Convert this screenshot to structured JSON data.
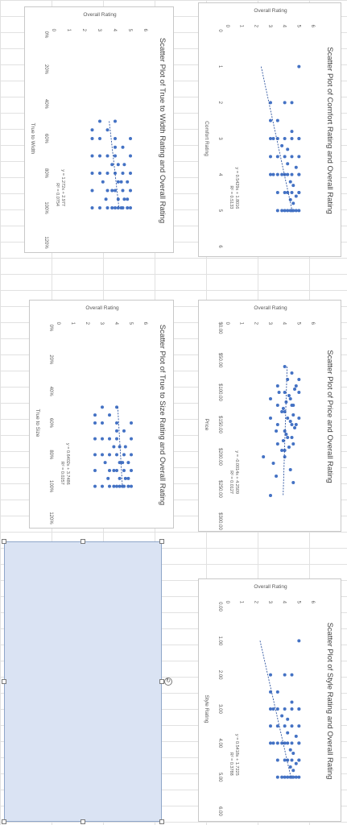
{
  "theme": {
    "marker_color": "#4472c4",
    "trend_color": "#2f55a0",
    "axis_text": "#595959",
    "title_text": "#404040"
  },
  "charts": [
    {
      "title": "Scatter Plot of Comfort Rating and Overall Rating",
      "xlabel": "Comfort Rating",
      "ylabel": "Overall Rating",
      "x_ticks": [
        "0",
        "1",
        "2",
        "3",
        "4",
        "5",
        "6"
      ],
      "y_ticks": [
        "0",
        "1",
        "2",
        "3",
        "4",
        "5",
        "6"
      ],
      "equation": "y = 0.5429x + 1.8016",
      "r2": "R² = 0.5133"
    },
    {
      "title": "Scatter Plot of True to Width Rating and Overall Rating",
      "xlabel": "True to Width",
      "ylabel": "Overall Rating",
      "x_ticks": [
        "0%",
        "20%",
        "40%",
        "60%",
        "80%",
        "100%",
        "120%"
      ],
      "y_ticks": [
        "0",
        "1",
        "2",
        "3",
        "4",
        "5",
        "6"
      ],
      "equation": "y = 1.272x + 2.977",
      "r2": "R² = 0.0754"
    },
    {
      "title": "Scatter Plot of Price and Overall Rating",
      "xlabel": "Price",
      "ylabel": "Overall Rating",
      "x_ticks": [
        "$0.00",
        "$50.00",
        "$100.00",
        "$150.00",
        "$200.00",
        "$250.00",
        "$300.00"
      ],
      "y_ticks": [
        "0",
        "1",
        "2",
        "3",
        "4",
        "5",
        "6"
      ],
      "equation": "y = -0.0014x + 4.2509",
      "r2": "R² = 0.0127"
    },
    {
      "title": "Scatter Plot of True to Size Rating and Overall Rating",
      "xlabel": "True to Size",
      "ylabel": "Overall Rating",
      "x_ticks": [
        "0%",
        "20%",
        "40%",
        "60%",
        "80%",
        "100%",
        "120%"
      ],
      "y_ticks": [
        "0",
        "1",
        "2",
        "3",
        "4",
        "5",
        "6"
      ],
      "equation": "y = 0.6402x + 3.7486",
      "r2": "R² = 0.0257"
    },
    {
      "title": "Scatter Plot of Style Rating and Overall Rating",
      "xlabel": "Style Rating",
      "ylabel": "Overall Rating",
      "x_ticks": [
        "0.00",
        "1.00",
        "2.00",
        "3.00",
        "4.00",
        "5.00",
        "6.00"
      ],
      "y_ticks": [
        "0",
        "1",
        "2",
        "3",
        "4",
        "5",
        "6"
      ],
      "equation": "y = 0.5418x + 1.7225",
      "r2": "R² = 0.3788"
    }
  ],
  "chart_data": [
    {
      "type": "scatter",
      "title": "Scatter Plot of Comfort Rating and Overall Rating",
      "xlabel": "Comfort Rating",
      "ylabel": "Overall Rating",
      "xlim": [
        0,
        6
      ],
      "ylim": [
        0,
        6
      ],
      "trendline": {
        "slope": 0.5429,
        "intercept": 1.8016,
        "r2": 0.5133
      },
      "x": [
        1,
        2,
        2,
        2.5,
        2.8,
        3,
        3,
        3,
        3,
        3,
        3.2,
        3.3,
        3.5,
        3.5,
        3.5,
        3.5,
        3.7,
        3.8,
        4,
        4,
        4,
        4,
        4,
        4,
        4,
        4.2,
        4.3,
        4.5,
        4.5,
        4.5,
        4.5,
        4.5,
        4.6,
        4.7,
        4.8,
        5,
        5,
        5,
        5,
        5,
        5,
        5,
        5,
        2,
        2.5,
        3,
        3.5,
        4,
        4.5,
        5,
        3,
        4
      ],
      "y": [
        5,
        3,
        4,
        3.5,
        4.5,
        3,
        3.5,
        4,
        4.5,
        5,
        3.8,
        4.2,
        3,
        3.5,
        4,
        4.5,
        4.2,
        4.8,
        3,
        3.5,
        4,
        4.5,
        5,
        4.2,
        3.8,
        4.4,
        4.6,
        3.5,
        4,
        4.5,
        5,
        4.2,
        4.8,
        4.4,
        4.6,
        3.5,
        4,
        4.5,
        5,
        4.2,
        4.8,
        4.6,
        3.8,
        4.5,
        3,
        5,
        5,
        5,
        5,
        4.4,
        3.2,
        3.2
      ]
    },
    {
      "type": "scatter",
      "title": "Scatter Plot of True to Width Rating and Overall Rating",
      "xlabel": "True to Width",
      "ylabel": "Overall Rating",
      "xlim": [
        0,
        1.2
      ],
      "ylim": [
        0,
        6
      ],
      "trendline": {
        "slope": 1.272,
        "intercept": 2.977,
        "r2": 0.0754
      },
      "x": [
        0.5,
        0.5,
        0.55,
        0.6,
        0.6,
        0.6,
        0.65,
        0.7,
        0.7,
        0.7,
        0.7,
        0.75,
        0.75,
        0.8,
        0.8,
        0.8,
        0.8,
        0.8,
        0.85,
        0.85,
        0.85,
        0.9,
        0.9,
        0.9,
        0.9,
        0.9,
        0.95,
        0.95,
        0.95,
        1,
        1,
        1,
        1,
        1,
        1,
        1,
        1,
        1,
        0.65,
        0.75,
        0.85,
        0.95,
        1,
        0.9,
        0.8,
        0.7,
        0.6,
        0.55
      ],
      "y": [
        3,
        4,
        3.5,
        3,
        4,
        5,
        4.5,
        3,
        3.5,
        4,
        5,
        4.2,
        3.8,
        3,
        3.5,
        4,
        4.5,
        5,
        3.2,
        4.2,
        4.8,
        3.5,
        4,
        4.5,
        5,
        3.8,
        4.2,
        4.6,
        3.4,
        3,
        3.5,
        4,
        4.5,
        5,
        4.2,
        3.8,
        4.4,
        4.8,
        4,
        4.6,
        4.4,
        4.8,
        2.5,
        2.5,
        2.5,
        2.5,
        2.5,
        2.5
      ]
    },
    {
      "type": "scatter",
      "title": "Scatter Plot of Price and Overall Rating",
      "xlabel": "Price",
      "ylabel": "Overall Rating",
      "xlim": [
        0,
        300
      ],
      "ylim": [
        0,
        6
      ],
      "trendline": {
        "slope": -0.0014,
        "intercept": 4.2509,
        "r2": 0.0127
      },
      "x": [
        60,
        70,
        80,
        90,
        100,
        100,
        110,
        120,
        120,
        130,
        140,
        140,
        150,
        150,
        160,
        170,
        180,
        190,
        200,
        210,
        220,
        240,
        260,
        80,
        90,
        100,
        110,
        120,
        130,
        140,
        150,
        160,
        170,
        180,
        190,
        95,
        105,
        115,
        125,
        135,
        145,
        155,
        165,
        175,
        185,
        200,
        230
      ],
      "y": [
        4,
        4.5,
        5,
        3.5,
        4,
        5,
        3,
        3.5,
        4.5,
        4,
        3,
        5,
        3.5,
        4.5,
        4,
        4.5,
        3.5,
        4,
        4,
        3.2,
        4.4,
        4.6,
        3,
        4.2,
        4.8,
        3.6,
        4.4,
        4.6,
        3.8,
        4.2,
        4.8,
        3.4,
        4.2,
        4.6,
        3.8,
        4.7,
        4.3,
        4.1,
        3.9,
        4.6,
        4.4,
        4.7,
        4.1,
        3.9,
        4.3,
        2.5,
        3.4
      ]
    },
    {
      "type": "scatter",
      "title": "Scatter Plot of True to Size Rating and Overall Rating",
      "xlabel": "True to Size",
      "ylabel": "Overall Rating",
      "xlim": [
        0,
        1.2
      ],
      "ylim": [
        0,
        6
      ],
      "trendline": {
        "slope": 0.6402,
        "intercept": 3.7486,
        "r2": 0.0257
      },
      "x": [
        0.5,
        0.5,
        0.55,
        0.6,
        0.6,
        0.6,
        0.65,
        0.7,
        0.7,
        0.7,
        0.7,
        0.75,
        0.75,
        0.8,
        0.8,
        0.8,
        0.8,
        0.8,
        0.85,
        0.85,
        0.85,
        0.9,
        0.9,
        0.9,
        0.9,
        0.9,
        0.95,
        0.95,
        0.95,
        1,
        1,
        1,
        1,
        1,
        1,
        1,
        1,
        1,
        0.65,
        0.75,
        0.85,
        0.95,
        1,
        0.9,
        0.8,
        0.7,
        0.6,
        0.55
      ],
      "y": [
        3,
        4,
        3.5,
        3,
        4,
        5,
        4.5,
        3,
        3.5,
        4,
        5,
        4.2,
        3.8,
        3,
        3.5,
        4,
        4.5,
        5,
        3.2,
        4.2,
        4.8,
        3.5,
        4,
        4.5,
        5,
        3.8,
        4.2,
        4.6,
        3.4,
        3,
        3.5,
        4,
        4.5,
        5,
        4.2,
        3.8,
        4.4,
        4.8,
        4,
        4.6,
        4.4,
        4.8,
        2.5,
        2.5,
        2.5,
        2.5,
        2.5,
        2.5
      ]
    },
    {
      "type": "scatter",
      "title": "Scatter Plot of Style Rating and Overall Rating",
      "xlabel": "Style Rating",
      "ylabel": "Overall Rating",
      "xlim": [
        0,
        6
      ],
      "ylim": [
        0,
        6
      ],
      "trendline": {
        "slope": 0.5418,
        "intercept": 1.7225,
        "r2": 0.3788
      },
      "x": [
        1,
        2,
        2,
        2.5,
        2.8,
        3,
        3,
        3,
        3,
        3,
        3.2,
        3.3,
        3.5,
        3.5,
        3.5,
        3.5,
        3.7,
        3.8,
        4,
        4,
        4,
        4,
        4,
        4,
        4,
        4.2,
        4.3,
        4.5,
        4.5,
        4.5,
        4.5,
        4.5,
        4.6,
        4.7,
        4.8,
        5,
        5,
        5,
        5,
        5,
        5,
        5,
        5,
        2,
        2.5,
        3,
        3.5,
        4,
        4.5,
        5,
        3,
        4
      ],
      "y": [
        5,
        3,
        4,
        3.5,
        4.5,
        3,
        3.5,
        4,
        4.5,
        5,
        3.8,
        4.2,
        3,
        3.5,
        4,
        4.5,
        4.2,
        4.8,
        3,
        3.5,
        4,
        4.5,
        5,
        4.2,
        3.8,
        4.4,
        4.6,
        3.5,
        4,
        4.5,
        5,
        4.2,
        4.8,
        4.4,
        4.6,
        3.5,
        4,
        4.5,
        5,
        4.2,
        4.8,
        4.6,
        3.8,
        4.5,
        3,
        5,
        5,
        5,
        5,
        4.4,
        3.2,
        3.2
      ]
    }
  ]
}
